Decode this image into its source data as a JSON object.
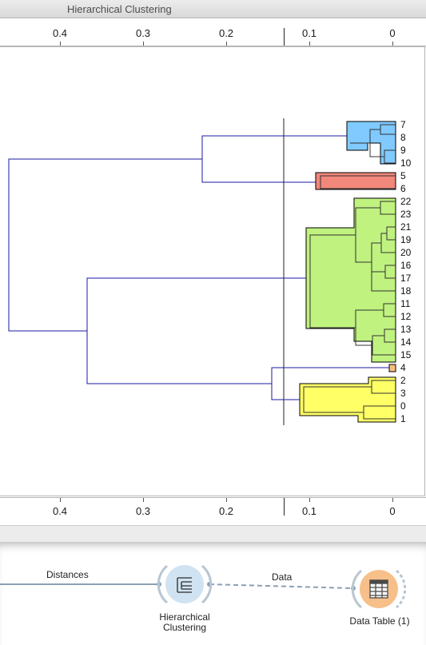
{
  "window": {
    "title": "Hierarchical Clustering"
  },
  "axis": {
    "ticks": [
      0.4,
      0.3,
      0.2,
      0.1,
      0
    ],
    "tick_labels": [
      "0.4",
      "0.3",
      "0.2",
      "0.1",
      "0"
    ],
    "cutoff": 0.13
  },
  "chart_data": {
    "type": "dendrogram",
    "x_axis_range": [
      0.49,
      0
    ],
    "leaf_order": [
      "7",
      "8",
      "9",
      "10",
      "5",
      "6",
      "22",
      "23",
      "21",
      "19",
      "20",
      "16",
      "17",
      "18",
      "11",
      "12",
      "13",
      "14",
      "15",
      "4",
      "2",
      "3",
      "0",
      "1"
    ],
    "cutoff_distance": 0.13,
    "clusters": [
      {
        "leaves": [
          "7",
          "8",
          "9",
          "10"
        ],
        "color": "#80caff"
      },
      {
        "leaves": [
          "5",
          "6"
        ],
        "color": "#f2877b"
      },
      {
        "leaves": [
          "22",
          "23",
          "21",
          "19",
          "20",
          "16",
          "17",
          "18",
          "11",
          "12",
          "13",
          "14",
          "15"
        ],
        "color": "#bff27f"
      },
      {
        "leaves": [
          "4"
        ],
        "color": "#f7c07e"
      },
      {
        "leaves": [
          "2",
          "3",
          "0",
          "1"
        ],
        "color": "#ffff66"
      }
    ],
    "merges": [
      {
        "members": [
          "cluster-7-10",
          "cluster-5-6"
        ],
        "height": 0.23
      },
      {
        "members": [
          "4",
          "cluster-2-1"
        ],
        "height": 0.145
      },
      {
        "members": [
          "cluster-22-15",
          "group-4-2-3-0-1"
        ],
        "height": 0.37
      },
      {
        "members": [
          "group-7-6",
          "group-22-1"
        ],
        "height": 0.46
      }
    ]
  },
  "workflow": {
    "link_left_label": "Distances",
    "link_right_label": "Data",
    "node_clustering_line1": "Hierarchical",
    "node_clustering_line2": "Clustering",
    "node_table_label": "Data Table (1)"
  },
  "colors": {
    "link_blue": "#1a1aa6",
    "node_blue": "#cfe3f3",
    "node_orange": "#f7c08a"
  }
}
